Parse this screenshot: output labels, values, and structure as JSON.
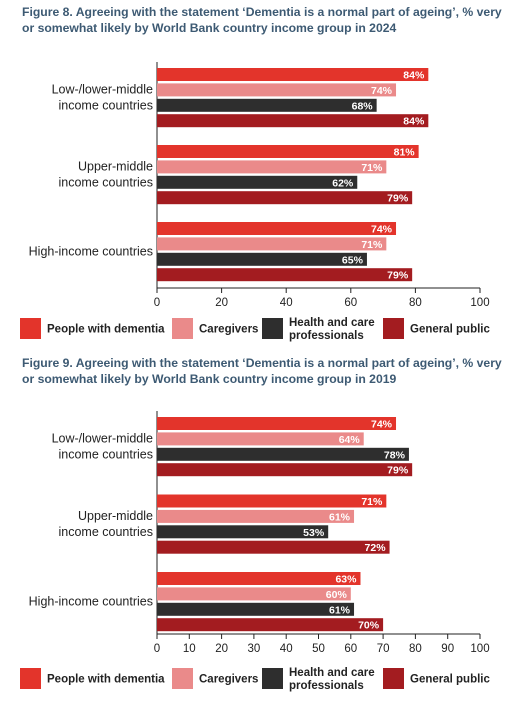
{
  "colors": {
    "people_with_dementia": "#e3342b",
    "caregivers": "#ea8a8a",
    "health_and_care_professionals": "#2e2e2e",
    "general_public": "#a31c20"
  },
  "chart_data": [
    {
      "type": "bar",
      "orientation": "horizontal",
      "title": "Figure 8. Agreeing with the statement ‘Dementia is a normal part of ageing’, % very or somewhat likely by World Bank country income group in 2024",
      "categories": [
        [
          "Low-/lower-middle",
          "income countries"
        ],
        [
          "Upper-middle",
          "income countries"
        ],
        [
          "High-income countries"
        ]
      ],
      "series": [
        {
          "name": "People with dementia",
          "values": [
            84,
            81,
            74
          ]
        },
        {
          "name": "Caregivers",
          "values": [
            74,
            71,
            71
          ]
        },
        {
          "name": "Health and care professionals",
          "values": [
            68,
            62,
            65
          ]
        },
        {
          "name": "General public",
          "values": [
            84,
            79,
            79
          ]
        }
      ],
      "xlim": [
        0,
        100
      ],
      "xticks": [
        0,
        20,
        40,
        60,
        80,
        100
      ],
      "value_suffix": "%",
      "legend_position": "bottom",
      "grid": false
    },
    {
      "type": "bar",
      "orientation": "horizontal",
      "title": "Figure 9. Agreeing with the statement ‘Dementia is a normal part of ageing’, % very or somewhat likely by World Bank country income group in 2019",
      "categories": [
        [
          "Low-/lower-middle",
          "income countries"
        ],
        [
          "Upper-middle",
          "income countries"
        ],
        [
          "High-income countries"
        ]
      ],
      "series": [
        {
          "name": "People with dementia",
          "values": [
            74,
            71,
            63
          ]
        },
        {
          "name": "Caregivers",
          "values": [
            64,
            61,
            60
          ]
        },
        {
          "name": "Health and care professionals",
          "values": [
            78,
            53,
            61
          ]
        },
        {
          "name": "General public",
          "values": [
            79,
            72,
            70
          ]
        }
      ],
      "xlim": [
        0,
        100
      ],
      "xticks": [
        0,
        10,
        20,
        30,
        40,
        50,
        60,
        70,
        80,
        90,
        100
      ],
      "value_suffix": "%",
      "legend_position": "bottom",
      "grid": false
    }
  ],
  "legend": [
    {
      "lines": [
        "People with dementia"
      ]
    },
    {
      "lines": [
        "Caregivers"
      ]
    },
    {
      "lines": [
        "Health and care",
        "professionals"
      ]
    },
    {
      "lines": [
        "General public"
      ]
    }
  ]
}
